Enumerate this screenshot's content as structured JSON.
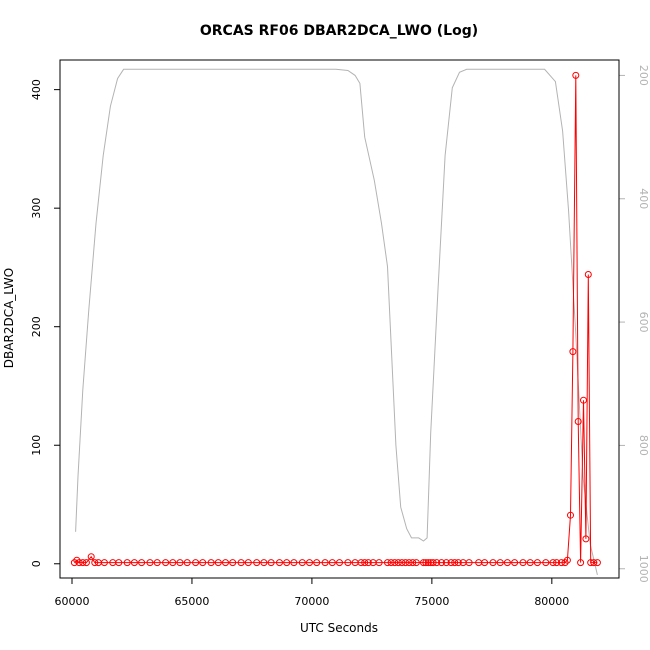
{
  "chart_data": {
    "type": "line",
    "title": "ORCAS RF06 DBAR2DCA_LWO (Log)",
    "xlabel": "UTC Seconds",
    "ylabel": "DBAR2DCA_LWO",
    "xlim": [
      59500,
      82800
    ],
    "ylim": [
      -12,
      425
    ],
    "x_ticks": [
      60000,
      65000,
      70000,
      75000,
      80000
    ],
    "y_ticks": [
      0,
      100,
      200,
      300,
      400
    ],
    "y2_ticks": [
      200,
      400,
      600,
      800,
      1000
    ],
    "y2lim": [
      1015,
      175
    ],
    "grid": false,
    "series": [
      {
        "role": "primary",
        "color": "#ff0000",
        "marker": "open-circle",
        "x": [
          60100,
          60200,
          60300,
          60450,
          60600,
          60800,
          60950,
          61100,
          61350,
          61700,
          61950,
          62300,
          62600,
          62900,
          63250,
          63550,
          63900,
          64200,
          64500,
          64800,
          65150,
          65450,
          65800,
          66100,
          66400,
          66700,
          67050,
          67350,
          67700,
          68000,
          68300,
          68650,
          68950,
          69250,
          69600,
          69900,
          70200,
          70550,
          70850,
          71150,
          71500,
          71800,
          72050,
          72200,
          72350,
          72550,
          72800,
          73150,
          73300,
          73450,
          73600,
          73750,
          73900,
          74050,
          74200,
          74350,
          74650,
          74750,
          74850,
          74950,
          75050,
          75200,
          75400,
          75600,
          75800,
          75950,
          76100,
          76300,
          76550,
          76950,
          77200,
          77550,
          77850,
          78150,
          78450,
          78800,
          79100,
          79400,
          79750,
          80050,
          80200,
          80400,
          80550,
          80650,
          80780,
          80880,
          81000,
          81100,
          81200,
          81320,
          81420,
          81520,
          81620,
          81750,
          81900
        ],
        "values": [
          1,
          3,
          1,
          1,
          1,
          6,
          1,
          1,
          1,
          1,
          1,
          1,
          1,
          1,
          1,
          1,
          1,
          1,
          1,
          1,
          1,
          1,
          1,
          1,
          1,
          1,
          1,
          1,
          1,
          1,
          1,
          1,
          1,
          1,
          1,
          1,
          1,
          1,
          1,
          1,
          1,
          1,
          1,
          1,
          1,
          1,
          1,
          1,
          1,
          1,
          1,
          1,
          1,
          1,
          1,
          1,
          1,
          1,
          1,
          1,
          1,
          1,
          1,
          1,
          1,
          1,
          1,
          1,
          1,
          1,
          1,
          1,
          1,
          1,
          1,
          1,
          1,
          1,
          1,
          1,
          1,
          1,
          1,
          3,
          41,
          179,
          412,
          120,
          1,
          138,
          21,
          244,
          1,
          1,
          1
        ]
      },
      {
        "role": "secondary",
        "color": "#b3b3b3",
        "axis": "right",
        "x": [
          60150,
          60250,
          60450,
          60700,
          61000,
          61300,
          61600,
          61900,
          62150,
          63000,
          64000,
          65000,
          66000,
          67000,
          68000,
          69000,
          70000,
          71000,
          71500,
          71800,
          72000,
          72200,
          72600,
          72900,
          73150,
          73500,
          73700,
          73950,
          74150,
          74450,
          74650,
          74800,
          74950,
          75250,
          75550,
          75850,
          76150,
          76450,
          77000,
          78000,
          79000,
          79700,
          80150,
          80450,
          80700,
          81000,
          81300,
          81600,
          81900
        ],
        "values": [
          940,
          850,
          710,
          580,
          440,
          330,
          250,
          205,
          190,
          190,
          190,
          190,
          190,
          190,
          190,
          190,
          190,
          190,
          192,
          200,
          213,
          300,
          370,
          440,
          510,
          800,
          900,
          935,
          950,
          950,
          955,
          950,
          780,
          550,
          330,
          220,
          195,
          190,
          190,
          190,
          190,
          190,
          210,
          290,
          420,
          620,
          850,
          960,
          1010
        ]
      }
    ]
  }
}
